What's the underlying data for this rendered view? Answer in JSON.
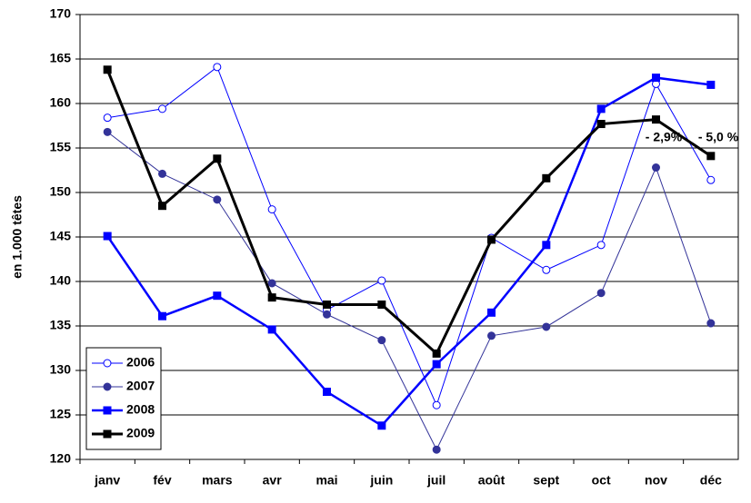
{
  "chart_data": {
    "type": "line",
    "y_label": "en 1.000 têtes",
    "categories": [
      "janv",
      "fév",
      "mars",
      "avr",
      "mai",
      "juin",
      "juil",
      "août",
      "sept",
      "oct",
      "nov",
      "déc"
    ],
    "series": [
      {
        "name": "2006",
        "color": "#0000ff",
        "marker": "circle",
        "marker_fill": "#ffffff",
        "line_width": 1,
        "values": [
          158.4,
          159.4,
          164.1,
          148.1,
          136.8,
          140.1,
          126.1,
          144.9,
          141.3,
          144.1,
          162.2,
          151.4
        ]
      },
      {
        "name": "2007",
        "color": "#333399",
        "marker": "circle",
        "marker_fill": "#333399",
        "line_width": 1,
        "values": [
          156.8,
          152.1,
          149.2,
          139.8,
          136.3,
          133.4,
          121.1,
          133.9,
          134.9,
          138.7,
          152.8,
          135.3
        ]
      },
      {
        "name": "2008",
        "color": "#0000ff",
        "marker": "square",
        "marker_fill": "#0000ff",
        "line_width": 2.5,
        "values": [
          145.1,
          136.1,
          138.4,
          134.6,
          127.6,
          123.8,
          130.7,
          136.5,
          144.1,
          159.4,
          162.9,
          162.1
        ]
      },
      {
        "name": "2009",
        "color": "#000000",
        "marker": "square",
        "marker_fill": "#000000",
        "line_width": 3,
        "values": [
          163.8,
          148.5,
          153.8,
          138.2,
          137.4,
          137.4,
          131.9,
          144.7,
          151.6,
          157.7,
          158.2,
          154.1
        ]
      }
    ],
    "ylim": [
      120,
      170
    ],
    "yticks": [
      120,
      125,
      130,
      135,
      140,
      145,
      150,
      155,
      160,
      165,
      170
    ],
    "grid": true,
    "legend": "lower left",
    "annotations": [
      "- 2,9%",
      "- 5,0 %"
    ]
  }
}
